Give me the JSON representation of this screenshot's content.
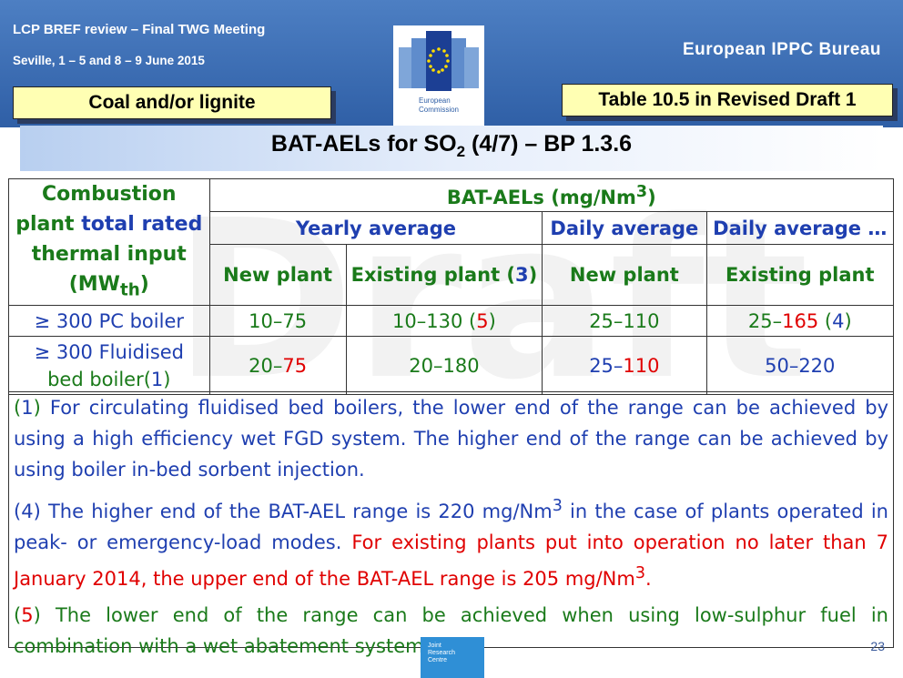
{
  "header": {
    "title": "LCP BREF review – Final TWG Meeting",
    "dates": "Seville, 1 – 5 and 8 – 9 June 2015",
    "bureau": "European IPPC Bureau",
    "ec_logo_line1": "European",
    "ec_logo_line2": "Commission"
  },
  "labels": {
    "fuel": "Coal and/or lignite",
    "table_ref": "Table 10.5 in Revised Draft 1"
  },
  "banner": {
    "title_pre": "BAT-AELs for SO",
    "title_sub": "2",
    "title_post": " (4/7) – BP 1.3.6"
  },
  "watermark": "Draft",
  "table": {
    "col1_header": {
      "line1": "Combustion",
      "line2a": "plant",
      "line2b": "total rated",
      "line3": "thermal input",
      "line4": "(MW",
      "line4_sub": "th",
      "line4_close": ")"
    },
    "bat_header": "BAT-AELs (mg/Nm",
    "bat_header_sup": "3",
    "bat_header_close": ")",
    "yearly": "Yearly average",
    "daily": "Daily average",
    "daily2": "Daily average …",
    "new_plant": "New plant",
    "existing_plant": "Existing plant (",
    "existing_note": "3",
    "existing_close": ")",
    "new_plant2": "New plant",
    "existing_plant2": "Existing plant",
    "row1": {
      "label": "≥ 300 PC boiler",
      "c1": "10–75",
      "c2": "10–130 (",
      "c2_note": "5",
      "c2_close": ")",
      "c3": "25–110",
      "c4a": "25–",
      "c4b": "165",
      "c4c": " (",
      "c4_note": "4",
      "c4d": ")"
    },
    "row2": {
      "label1": "≥ 300 Fluidised",
      "label2": "bed boiler(",
      "label_note": "1",
      "label_close": ")",
      "c1a": "20–",
      "c1b": "75",
      "c2": "20–180",
      "c3a": "25–",
      "c3b": "110",
      "c4": "50–220"
    }
  },
  "notes": {
    "n1_open": "(",
    "n1_num": "1",
    "n1_close": ") ",
    "n1_text": "For circulating fluidised bed boilers, the lower end of the range can be achieved by using a high efficiency wet FGD system. The higher end of the range can be achieved by using boiler in-bed sorbent injection.",
    "n4_open": "(",
    "n4_num": "4",
    "n4_close": ") ",
    "n4_text_a": "The higher end of the BAT-AEL range is 220 mg/Nm",
    "n4_sup": "3",
    "n4_text_b": " in the case of plants operated in peak- or emergency-load modes. ",
    "n4_red": "For existing plants put into operation no later than 7 January 2014, the upper end of the BAT-AEL range is 205 mg/Nm",
    "n4_red_sup": "3",
    "n4_red_end": ".",
    "n5_open": "(",
    "n5_num": "5",
    "n5_close": ") ",
    "n5_text": "The lower end of the range can be achieved when using low-sulphur fuel in combination with a wet abatement system."
  },
  "jrc_logo": {
    "line1": "Joint",
    "line2": "Research",
    "line3": "Centre"
  },
  "page_number": "23"
}
